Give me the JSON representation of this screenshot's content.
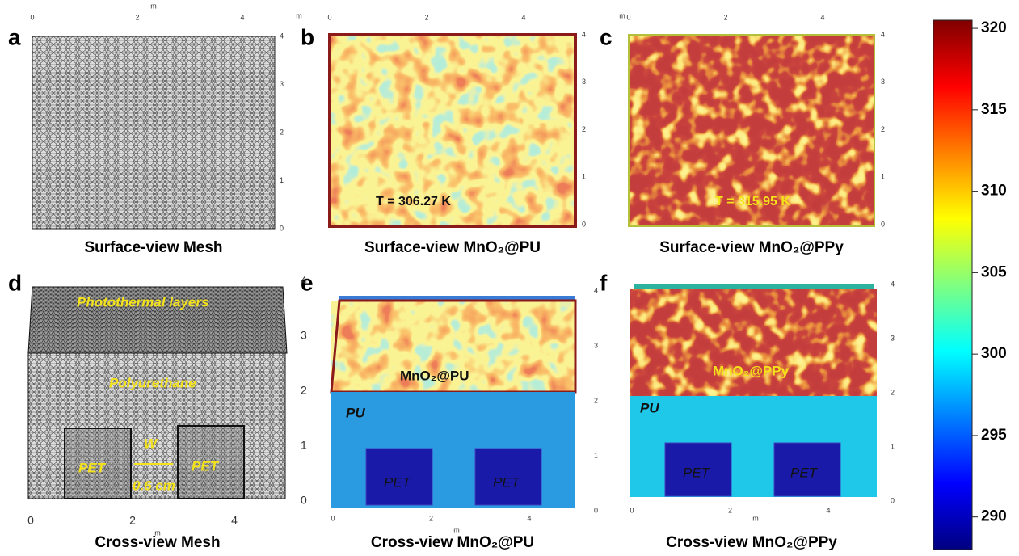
{
  "panels": [
    {
      "letter": "a",
      "caption": "Surface-view Mesh",
      "axis_unit": "m",
      "x_ticks": [
        "0",
        "2",
        "4"
      ],
      "y_ticks": [
        "0",
        "1",
        "2",
        "3",
        "4"
      ]
    },
    {
      "letter": "b",
      "caption": "Surface-view MnO₂@PU",
      "annotation": "T = 306.27 K",
      "axis_unit": "m",
      "x_ticks": [
        "0",
        "2",
        "4"
      ],
      "y_ticks": [
        "0",
        "1",
        "2",
        "3",
        "4"
      ]
    },
    {
      "letter": "c",
      "caption": "Surface-view MnO₂@PPy",
      "annotation": "T = 315.95 K",
      "axis_unit": "m",
      "x_ticks": [
        "0",
        "2",
        "4"
      ],
      "y_ticks": [
        "0",
        "1",
        "2",
        "3",
        "4"
      ]
    },
    {
      "letter": "d",
      "caption": "Cross-view Mesh",
      "labels": [
        "Photothermal  layers",
        "Polyurethane",
        "PET",
        "PET",
        "W",
        "0.6 cm"
      ],
      "axis_unit": "m",
      "x_ticks": [
        "0",
        "2",
        "4"
      ],
      "y_ticks": [
        "0",
        "1",
        "2",
        "3",
        "4"
      ]
    },
    {
      "letter": "e",
      "caption": "Cross-view MnO₂@PU",
      "labels": [
        "MnO₂@PU",
        "PU",
        "PET",
        "PET"
      ],
      "axis_unit": "m",
      "x_ticks": [
        "0",
        "2",
        "4"
      ],
      "y_ticks": [
        "0",
        "1",
        "2",
        "3",
        "4"
      ]
    },
    {
      "letter": "f",
      "caption": "Cross-view MnO₂@PPy",
      "labels": [
        "MnO₂@PPy",
        "PU",
        "PET",
        "PET"
      ],
      "axis_unit": "m",
      "x_ticks": [
        "0",
        "2",
        "4"
      ],
      "y_ticks": [
        "0",
        "1",
        "2",
        "3",
        "4"
      ]
    }
  ],
  "colorbar": {
    "range": [
      288,
      320.5
    ],
    "ticks": [
      290,
      295,
      300,
      305,
      310,
      315,
      320
    ]
  }
}
